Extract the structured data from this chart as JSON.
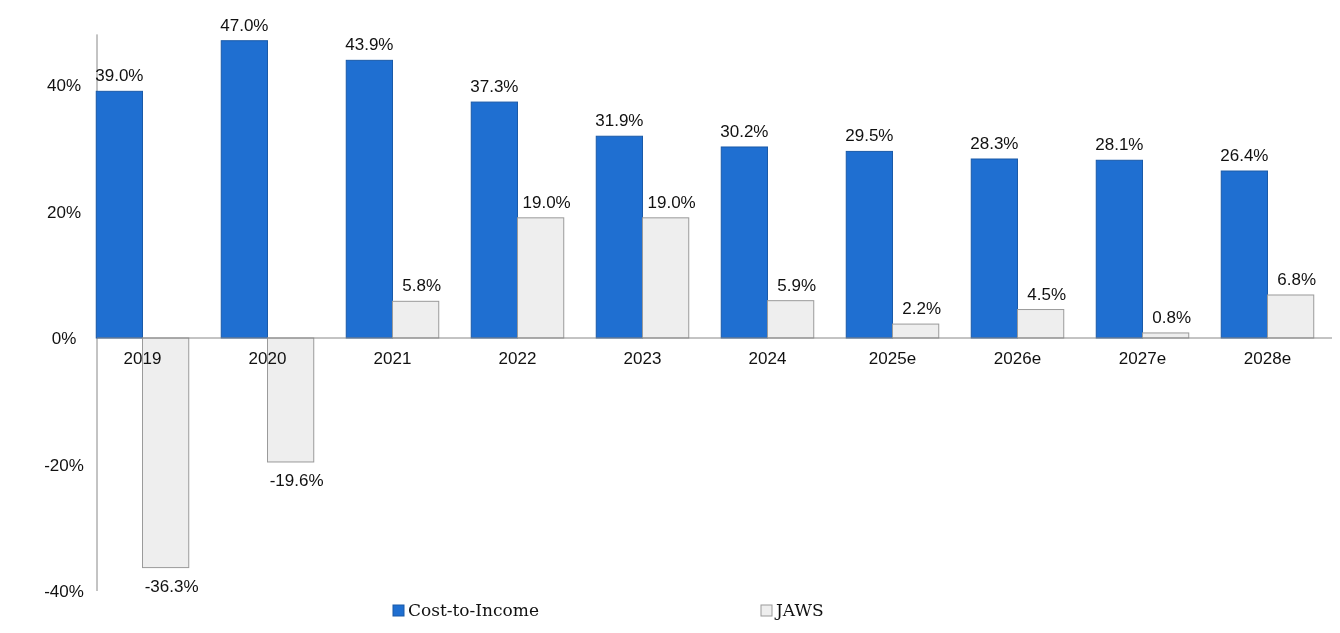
{
  "chart_data": {
    "type": "bar",
    "categories": [
      "2019",
      "2020",
      "2021",
      "2022",
      "2023",
      "2024",
      "2025e",
      "2026e",
      "2027e",
      "2028e"
    ],
    "series": [
      {
        "name": "Cost-to-Income",
        "color": "#1f6fd1",
        "values": [
          39.0,
          47.0,
          43.9,
          37.3,
          31.9,
          30.2,
          29.5,
          28.3,
          28.1,
          26.4
        ],
        "value_labels": [
          "39.0%",
          "47.0%",
          "43.9%",
          "37.3%",
          "31.9%",
          "30.2%",
          "29.5%",
          "28.3%",
          "28.1%",
          "26.4%"
        ]
      },
      {
        "name": "JAWS",
        "color": "#eeeeee",
        "values": [
          -36.3,
          -19.6,
          5.8,
          19.0,
          19.0,
          5.9,
          2.2,
          4.5,
          0.8,
          6.8
        ],
        "value_labels": [
          "-36.3%",
          "-19.6%",
          "5.8%",
          "19.0%",
          "19.0%",
          "5.9%",
          "2.2%",
          "4.5%",
          "0.8%",
          "6.8%"
        ]
      }
    ],
    "ylim": [
      -40,
      48
    ],
    "yticks": [
      {
        "value": -40,
        "label": "-40%"
      },
      {
        "value": -20,
        "label": "-20%"
      },
      {
        "value": 0,
        "label": "0%"
      },
      {
        "value": 20,
        "label": "20%"
      },
      {
        "value": 40,
        "label": "40%"
      }
    ],
    "legend": "bottom",
    "grid": false
  }
}
